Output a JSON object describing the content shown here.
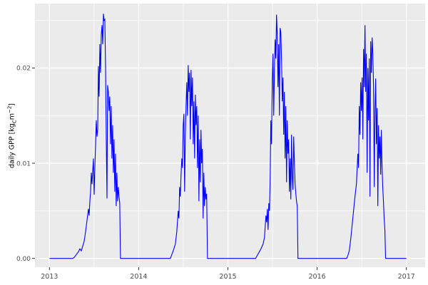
{
  "figure": {
    "kind": "ggplot-line-chart",
    "background": "#ffffff"
  },
  "axes": {
    "y": {
      "title_prefix": "daily GPP [kg",
      "title_sub": "C",
      "title_mid": "m",
      "title_sup": "−2",
      "title_suffix": "]",
      "domain": [
        -0.00092,
        0.02677
      ],
      "ticks": [
        {
          "value": 0.0,
          "label": "0.00"
        },
        {
          "value": 0.01,
          "label": "0.01"
        },
        {
          "value": 0.02,
          "label": "0.02"
        }
      ],
      "minor": [
        0.005,
        0.015,
        0.025
      ]
    },
    "x": {
      "domain": [
        2012.8377,
        2017.2102
      ],
      "ticks": [
        {
          "value": 2013,
          "label": "2013"
        },
        {
          "value": 2014,
          "label": "2014"
        },
        {
          "value": 2015,
          "label": "2015"
        },
        {
          "value": 2016,
          "label": "2016"
        },
        {
          "value": 2017,
          "label": "2017"
        }
      ],
      "minor": [
        2013.5,
        2014.5,
        2015.5,
        2016.5
      ]
    }
  },
  "colors": {
    "panel_bg": "#EBEBEB",
    "grid_major": "#FFFFFF",
    "grid_minor": "#FFFFFF",
    "line": "#0000FF",
    "axis_text": "#4D4D4D",
    "tick_mark": "#333333"
  },
  "chart_data": {
    "type": "line",
    "title": "",
    "xlabel": "",
    "ylabel": "daily GPP [kg_C m^-2]",
    "xlim": [
      2012.84,
      2017.21
    ],
    "ylim": [
      -0.0009,
      0.0268
    ],
    "grid": "on",
    "legend": "none",
    "series": [
      {
        "name": "daily GPP",
        "color": "#0000FF",
        "points": [
          [
            2013.0,
            0
          ],
          [
            2013.26,
            0
          ],
          [
            2013.277,
            0.0001
          ],
          [
            2013.293,
            0.0003
          ],
          [
            2013.309,
            0.0005
          ],
          [
            2013.325,
            0.0007
          ],
          [
            2013.341,
            0.001
          ],
          [
            2013.357,
            0.0008
          ],
          [
            2013.373,
            0.0013
          ],
          [
            2013.389,
            0.0018
          ],
          [
            2013.405,
            0.0028
          ],
          [
            2013.421,
            0.004
          ],
          [
            2013.437,
            0.0052
          ],
          [
            2013.445,
            0.0045
          ],
          [
            2013.453,
            0.006
          ],
          [
            2013.461,
            0.007
          ],
          [
            2013.469,
            0.009
          ],
          [
            2013.477,
            0.0078
          ],
          [
            2013.485,
            0.0092
          ],
          [
            2013.493,
            0.0105
          ],
          [
            2013.501,
            0.0067
          ],
          [
            2013.509,
            0.0095
          ],
          [
            2013.517,
            0.012
          ],
          [
            2013.525,
            0.0145
          ],
          [
            2013.533,
            0.0128
          ],
          [
            2013.541,
            0.0135
          ],
          [
            2013.549,
            0.0202
          ],
          [
            2013.557,
            0.017
          ],
          [
            2013.565,
            0.0225
          ],
          [
            2013.573,
            0.0195
          ],
          [
            2013.581,
            0.0235
          ],
          [
            2013.589,
            0.0245
          ],
          [
            2013.597,
            0.0225
          ],
          [
            2013.605,
            0.0257
          ],
          [
            2013.613,
            0.025
          ],
          [
            2013.621,
            0.0251
          ],
          [
            2013.629,
            0.02
          ],
          [
            2013.637,
            0.0124
          ],
          [
            2013.645,
            0.0063
          ],
          [
            2013.652,
            0.0182
          ],
          [
            2013.66,
            0.0175
          ],
          [
            2013.668,
            0.0155
          ],
          [
            2013.676,
            0.017
          ],
          [
            2013.684,
            0.012
          ],
          [
            2013.692,
            0.016
          ],
          [
            2013.7,
            0.0105
          ],
          [
            2013.708,
            0.014
          ],
          [
            2013.716,
            0.009
          ],
          [
            2013.724,
            0.0125
          ],
          [
            2013.732,
            0.007
          ],
          [
            2013.74,
            0.011
          ],
          [
            2013.748,
            0.0055
          ],
          [
            2013.756,
            0.009
          ],
          [
            2013.764,
            0.006
          ],
          [
            2013.772,
            0.0075
          ],
          [
            2013.78,
            0.0065
          ],
          [
            2013.788,
            0.0058
          ],
          [
            2013.796,
            0
          ],
          [
            2014.355,
            0
          ],
          [
            2014.363,
            0.0002
          ],
          [
            2014.387,
            0.0008
          ],
          [
            2014.411,
            0.0015
          ],
          [
            2014.427,
            0.0028
          ],
          [
            2014.443,
            0.005
          ],
          [
            2014.451,
            0.0042
          ],
          [
            2014.459,
            0.0075
          ],
          [
            2014.467,
            0.0065
          ],
          [
            2014.475,
            0.0088
          ],
          [
            2014.483,
            0.0105
          ],
          [
            2014.491,
            0.0095
          ],
          [
            2014.499,
            0.014
          ],
          [
            2014.507,
            0.0152
          ],
          [
            2014.515,
            0.007
          ],
          [
            2014.523,
            0.013
          ],
          [
            2014.531,
            0.016
          ],
          [
            2014.539,
            0.0185
          ],
          [
            2014.547,
            0.015
          ],
          [
            2014.555,
            0.0203
          ],
          [
            2014.563,
            0.0175
          ],
          [
            2014.571,
            0.0195
          ],
          [
            2014.579,
            0.0125
          ],
          [
            2014.587,
            0.0198
          ],
          [
            2014.595,
            0.016
          ],
          [
            2014.603,
            0.019
          ],
          [
            2014.611,
            0.012
          ],
          [
            2014.619,
            0.0165
          ],
          [
            2014.627,
            0.0105
          ],
          [
            2014.635,
            0.0172
          ],
          [
            2014.643,
            0.014
          ],
          [
            2014.651,
            0.016
          ],
          [
            2014.659,
            0.0095
          ],
          [
            2014.667,
            0.015
          ],
          [
            2014.675,
            0.006
          ],
          [
            2014.683,
            0.0125
          ],
          [
            2014.691,
            0.008
          ],
          [
            2014.698,
            0.0135
          ],
          [
            2014.706,
            0.01
          ],
          [
            2014.714,
            0.0115
          ],
          [
            2014.722,
            0.0042
          ],
          [
            2014.73,
            0.009
          ],
          [
            2014.738,
            0.0055
          ],
          [
            2014.746,
            0.0075
          ],
          [
            2014.754,
            0.0062
          ],
          [
            2014.762,
            0.0068
          ],
          [
            2014.771,
            0
          ],
          [
            2015.31,
            0
          ],
          [
            2015.322,
            0.0002
          ],
          [
            2015.346,
            0.0006
          ],
          [
            2015.37,
            0.001
          ],
          [
            2015.394,
            0.0015
          ],
          [
            2015.41,
            0.0022
          ],
          [
            2015.426,
            0.0045
          ],
          [
            2015.434,
            0.0038
          ],
          [
            2015.442,
            0.0052
          ],
          [
            2015.45,
            0.003
          ],
          [
            2015.458,
            0.0058
          ],
          [
            2015.466,
            0.005
          ],
          [
            2015.473,
            0.008
          ],
          [
            2015.481,
            0.0145
          ],
          [
            2015.489,
            0.012
          ],
          [
            2015.497,
            0.0185
          ],
          [
            2015.505,
            0.0215
          ],
          [
            2015.513,
            0.015
          ],
          [
            2015.521,
            0.0195
          ],
          [
            2015.529,
            0.023
          ],
          [
            2015.537,
            0.021
          ],
          [
            2015.545,
            0.0256
          ],
          [
            2015.553,
            0.0235
          ],
          [
            2015.561,
            0.018
          ],
          [
            2015.569,
            0.0225
          ],
          [
            2015.577,
            0.015
          ],
          [
            2015.585,
            0.0242
          ],
          [
            2015.593,
            0.0238
          ],
          [
            2015.601,
            0.021
          ],
          [
            2015.609,
            0.0165
          ],
          [
            2015.617,
            0.019
          ],
          [
            2015.625,
            0.013
          ],
          [
            2015.633,
            0.0175
          ],
          [
            2015.641,
            0.0105
          ],
          [
            2015.649,
            0.016
          ],
          [
            2015.657,
            0.008
          ],
          [
            2015.665,
            0.0145
          ],
          [
            2015.673,
            0.011
          ],
          [
            2015.681,
            0.0125
          ],
          [
            2015.689,
            0.007
          ],
          [
            2015.697,
            0.0105
          ],
          [
            2015.705,
            0.0062
          ],
          [
            2015.713,
            0.013
          ],
          [
            2015.721,
            0.0085
          ],
          [
            2015.729,
            0.0072
          ],
          [
            2015.737,
            0.0128
          ],
          [
            2015.745,
            0.01
          ],
          [
            2015.753,
            0.0078
          ],
          [
            2015.761,
            0.0068
          ],
          [
            2015.769,
            0.006
          ],
          [
            2015.777,
            0.0055
          ],
          [
            2015.785,
            0
          ],
          [
            2016.33,
            0
          ],
          [
            2016.344,
            0.0003
          ],
          [
            2016.36,
            0.0008
          ],
          [
            2016.376,
            0.002
          ],
          [
            2016.392,
            0.0035
          ],
          [
            2016.408,
            0.005
          ],
          [
            2016.424,
            0.0065
          ],
          [
            2016.44,
            0.0078
          ],
          [
            2016.456,
            0.011
          ],
          [
            2016.464,
            0.0095
          ],
          [
            2016.472,
            0.016
          ],
          [
            2016.48,
            0.013
          ],
          [
            2016.488,
            0.0185
          ],
          [
            2016.496,
            0.0155
          ],
          [
            2016.504,
            0.019
          ],
          [
            2016.512,
            0.0125
          ],
          [
            2016.52,
            0.022
          ],
          [
            2016.528,
            0.018
          ],
          [
            2016.536,
            0.0245
          ],
          [
            2016.544,
            0.0175
          ],
          [
            2016.552,
            0.0215
          ],
          [
            2016.56,
            0.009
          ],
          [
            2016.568,
            0.02
          ],
          [
            2016.576,
            0.0145
          ],
          [
            2016.584,
            0.021
          ],
          [
            2016.592,
            0.0065
          ],
          [
            2016.6,
            0.0228
          ],
          [
            2016.608,
            0.0195
          ],
          [
            2016.616,
            0.0232
          ],
          [
            2016.624,
            0.0215
          ],
          [
            2016.632,
            0.018
          ],
          [
            2016.64,
            0.0075
          ],
          [
            2016.648,
            0.0155
          ],
          [
            2016.656,
            0.0189
          ],
          [
            2016.664,
            0.012
          ],
          [
            2016.672,
            0.0158
          ],
          [
            2016.68,
            0.0055
          ],
          [
            2016.688,
            0.014
          ],
          [
            2016.696,
            0.0105
          ],
          [
            2016.704,
            0.0128
          ],
          [
            2016.712,
            0.0088
          ],
          [
            2016.719,
            0.0135
          ],
          [
            2016.727,
            0.0098
          ],
          [
            2016.735,
            0.0075
          ],
          [
            2016.743,
            0.006
          ],
          [
            2016.751,
            0.0042
          ],
          [
            2016.759,
            0.003
          ],
          [
            2016.767,
            0
          ],
          [
            2017.0,
            0
          ]
        ]
      }
    ]
  }
}
